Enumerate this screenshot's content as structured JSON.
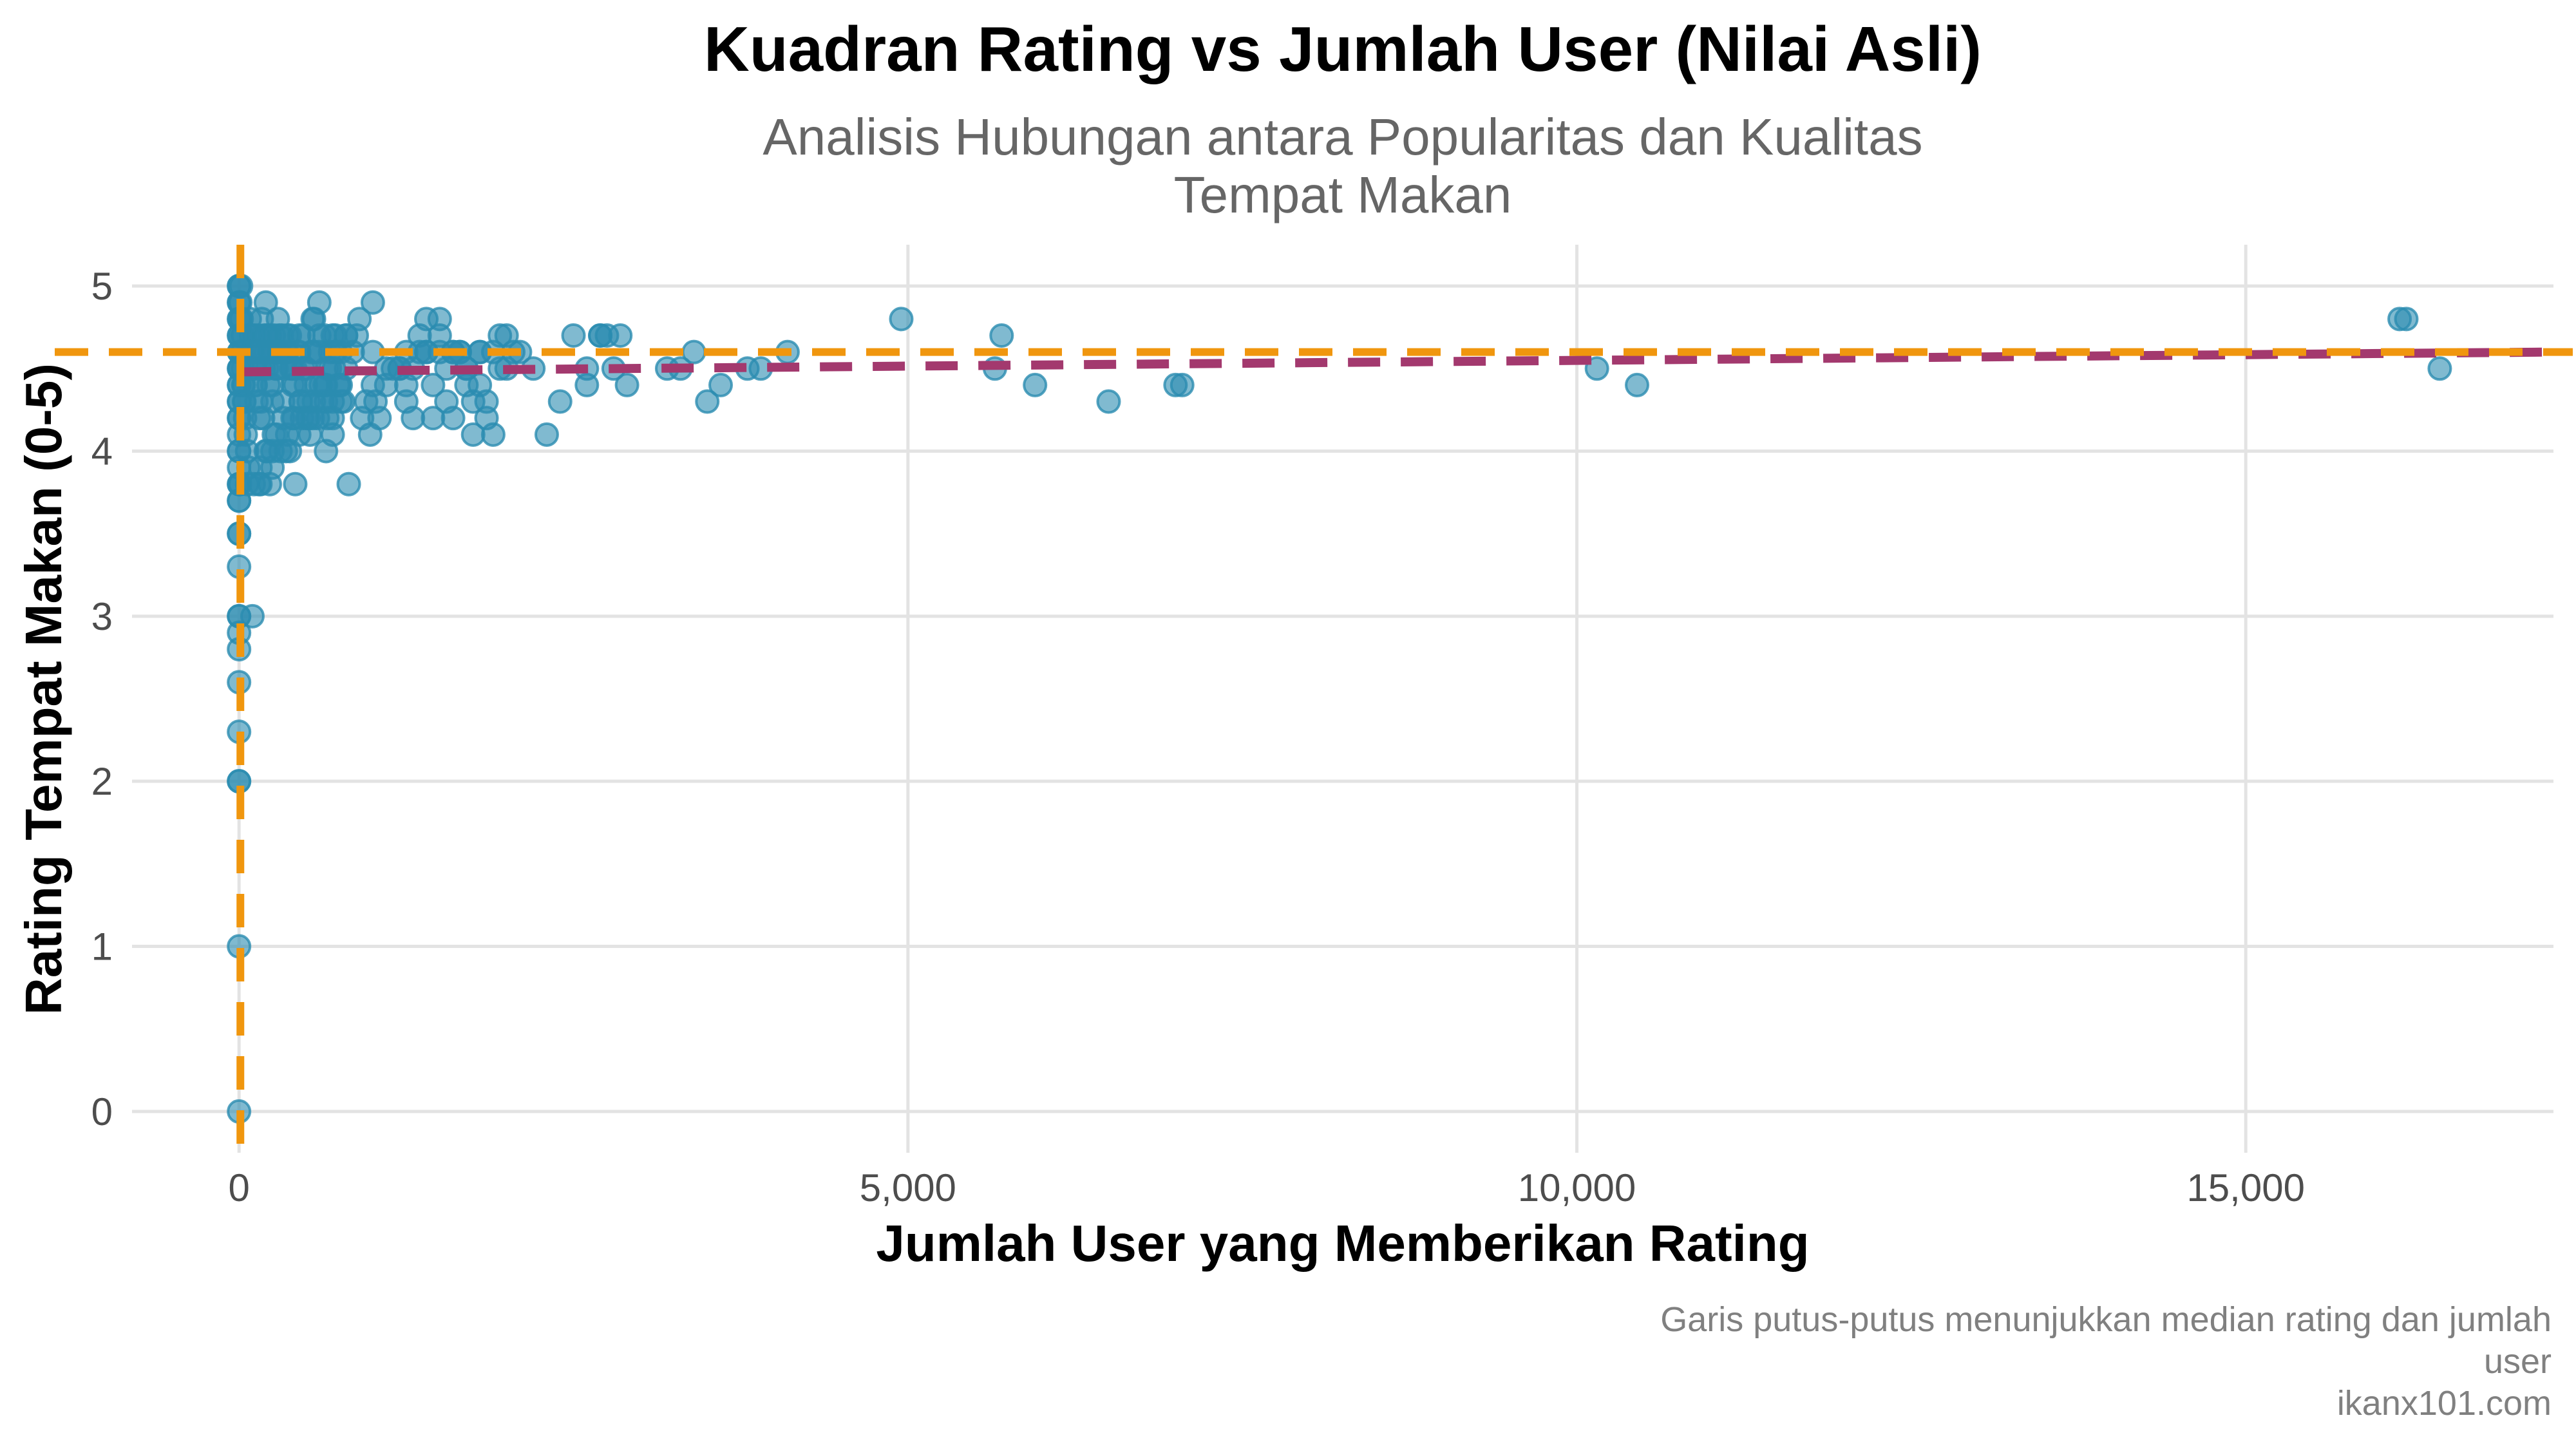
{
  "chart_data": {
    "type": "scatter",
    "title": "Kuadran Rating vs Jumlah User (Nilai Asli)",
    "subtitle": [
      "Analisis Hubungan antara Popularitas dan Kualitas",
      "Tempat Makan"
    ],
    "xlabel": "Jumlah User yang Memberikan Rating",
    "ylabel": "Rating Tempat Makan (0-5)",
    "caption": [
      "Garis putus-putus menunjukkan median rating dan jumlah",
      "user",
      "ikanx101.com"
    ],
    "xlim": [
      -800,
      17300
    ],
    "ylim": [
      -0.25,
      5.25
    ],
    "xticks": [
      0,
      5000,
      10000,
      15000
    ],
    "xtick_labels": [
      "0",
      "5,000",
      "10,000",
      "15,000"
    ],
    "yticks": [
      0,
      1,
      2,
      3,
      4,
      5
    ],
    "ytick_labels": [
      "0",
      "1",
      "2",
      "3",
      "4",
      "5"
    ],
    "grid": true,
    "point_color": "#2b8cb0",
    "median_line_color": "#f0960e",
    "trend_line_color": "#a3396e",
    "median_x": 10,
    "median_y": 4.6,
    "trend_line": {
      "x": [
        0,
        17300
      ],
      "y": [
        4.48,
        4.6
      ]
    },
    "points": {
      "x": [
        0,
        0,
        0,
        0,
        0,
        0,
        0,
        0,
        0,
        0,
        0,
        0,
        0,
        0,
        0,
        0,
        0,
        0,
        0,
        0,
        0,
        0,
        0,
        0,
        0,
        0,
        0,
        0,
        0,
        0,
        0,
        0,
        0,
        0,
        0,
        0,
        0,
        0,
        0,
        10,
        20,
        30,
        15,
        25,
        5,
        35,
        40,
        45,
        50,
        60,
        70,
        12,
        18,
        22,
        28,
        32,
        38,
        8,
        80,
        90,
        100,
        110,
        120,
        130,
        140,
        150,
        160,
        170,
        180,
        190,
        200,
        210,
        220,
        230,
        240,
        250,
        260,
        270,
        280,
        290,
        300,
        320,
        340,
        360,
        380,
        400,
        420,
        440,
        460,
        480,
        500,
        520,
        540,
        560,
        580,
        600,
        620,
        640,
        660,
        680,
        700,
        720,
        740,
        760,
        780,
        800,
        95,
        105,
        115,
        125,
        145,
        165,
        185,
        205,
        225,
        250,
        275,
        300,
        330,
        360,
        390,
        420,
        450,
        480,
        520,
        560,
        600,
        640,
        680,
        720,
        760,
        800,
        150,
        250,
        350,
        450,
        550,
        650,
        750,
        850,
        950,
        1050,
        1150,
        1250,
        1350,
        1450,
        1550,
        1650,
        1750,
        1850,
        1950,
        60,
        110,
        160,
        210,
        260,
        310,
        360,
        410,
        460,
        510,
        560,
        610,
        660,
        710,
        100,
        160,
        200,
        230,
        280,
        330,
        380,
        420,
        470,
        530,
        590,
        650,
        700,
        760,
        820,
        880,
        920,
        980,
        1000,
        1020,
        1100,
        1200,
        1300,
        1400,
        1500,
        1600,
        1700,
        1800,
        1900,
        400,
        600,
        700,
        900,
        1000,
        1100,
        1200,
        1250,
        1350,
        1400,
        1450,
        1500,
        1550,
        1600,
        1650,
        1700,
        1750,
        1800,
        1850,
        1900,
        1950,
        2000,
        2100,
        2200,
        2300,
        2400,
        2500,
        2600,
        2700,
        2800,
        2900,
        2000,
        2050,
        2600,
        2700,
        2750,
        2850,
        3200,
        3300,
        3400,
        3500,
        3600,
        3800,
        3900,
        4100,
        4950,
        5650,
        5700,
        5950,
        6500,
        7000,
        7050,
        10150,
        10450,
        16150,
        16200,
        16450,
        150,
        250,
        350,
        450,
        550,
        700,
        200,
        300,
        400,
        500,
        650,
        800,
        1000,
        1250,
        1300,
        1400,
        1500,
        1600,
        1700,
        1800
      ],
      "y": [
        5.0,
        4.9,
        4.8,
        4.7,
        4.6,
        4.5,
        4.4,
        4.3,
        4.2,
        4.1,
        4.0,
        3.9,
        3.8,
        3.7,
        3.5,
        3.3,
        3.0,
        2.9,
        2.8,
        2.6,
        2.3,
        2.0,
        1.0,
        0.0,
        5.0,
        4.9,
        4.8,
        4.7,
        4.6,
        4.5,
        4.4,
        4.3,
        4.2,
        4.0,
        3.8,
        3.7,
        3.5,
        3.0,
        2.0,
        4.9,
        4.8,
        4.7,
        5.0,
        4.6,
        4.5,
        4.4,
        4.3,
        4.2,
        4.1,
        4.0,
        3.9,
        4.8,
        4.7,
        4.6,
        4.5,
        4.4,
        4.3,
        3.8,
        4.8,
        4.7,
        4.6,
        4.5,
        4.4,
        4.3,
        4.7,
        4.6,
        4.5,
        4.8,
        4.2,
        4.7,
        4.6,
        4.5,
        4.4,
        4.7,
        4.6,
        4.3,
        4.7,
        4.6,
        4.5,
        4.8,
        4.6,
        4.7,
        4.5,
        4.6,
        4.7,
        4.4,
        4.5,
        4.6,
        4.3,
        4.7,
        4.5,
        4.2,
        4.6,
        4.8,
        4.4,
        4.9,
        4.3,
        4.7,
        4.5,
        4.6,
        4.2,
        4.7,
        4.4,
        4.6,
        4.3,
        4.5,
        4.6,
        4.5,
        4.7,
        4.4,
        4.6,
        4.3,
        4.5,
        4.7,
        4.6,
        4.4,
        4.5,
        4.6,
        4.3,
        4.7,
        4.5,
        4.4,
        4.6,
        4.5,
        4.3,
        4.6,
        4.7,
        4.4,
        4.5,
        4.6,
        4.3,
        4.7,
        3.8,
        3.9,
        4.0,
        4.1,
        4.2,
        4.3,
        4.4,
        4.6,
        4.3,
        4.2,
        4.5,
        4.6,
        4.7,
        4.4,
        4.5,
        4.6,
        4.3,
        4.2,
        4.5,
        3.8,
        3.8,
        3.9,
        4.0,
        4.1,
        4.0,
        4.1,
        4.2,
        4.3,
        4.2,
        4.3,
        4.4,
        4.2,
        4.5,
        3.0,
        3.8,
        4.0,
        3.8,
        4.1,
        4.2,
        4.0,
        3.8,
        4.2,
        4.1,
        4.2,
        4.0,
        4.3,
        4.4,
        3.8,
        4.7,
        4.2,
        4.1,
        4.9,
        4.3,
        4.4,
        4.5,
        4.2,
        4.6,
        4.8,
        4.6,
        4.4,
        4.6,
        4.1,
        4.5,
        4.6,
        4.7,
        4.8,
        4.6,
        4.5,
        4.5,
        4.4,
        4.6,
        4.8,
        4.2,
        4.6,
        4.3,
        4.2,
        4.6,
        4.5,
        4.1,
        4.6,
        4.3,
        4.6,
        4.7,
        4.5,
        4.6,
        4.5,
        4.1,
        4.3,
        4.7,
        4.4,
        4.7,
        4.5,
        4.4,
        4.7,
        4.6,
        4.5,
        4.7,
        4.7,
        4.7,
        4.5,
        4.5,
        4.6,
        4.3,
        4.4,
        4.5,
        4.5,
        4.6,
        4.8,
        4.5,
        4.7,
        4.4,
        4.3,
        4.4,
        4.4,
        4.5,
        4.4,
        4.8,
        4.8,
        4.5,
        4.2,
        4.0,
        4.6,
        4.7,
        4.8,
        4.1,
        4.9,
        4.7,
        4.2,
        4.4,
        4.4,
        4.7,
        4.4,
        4.3,
        4.5,
        4.6,
        4.7,
        4.6,
        4.5,
        4.4
      ]
    }
  }
}
